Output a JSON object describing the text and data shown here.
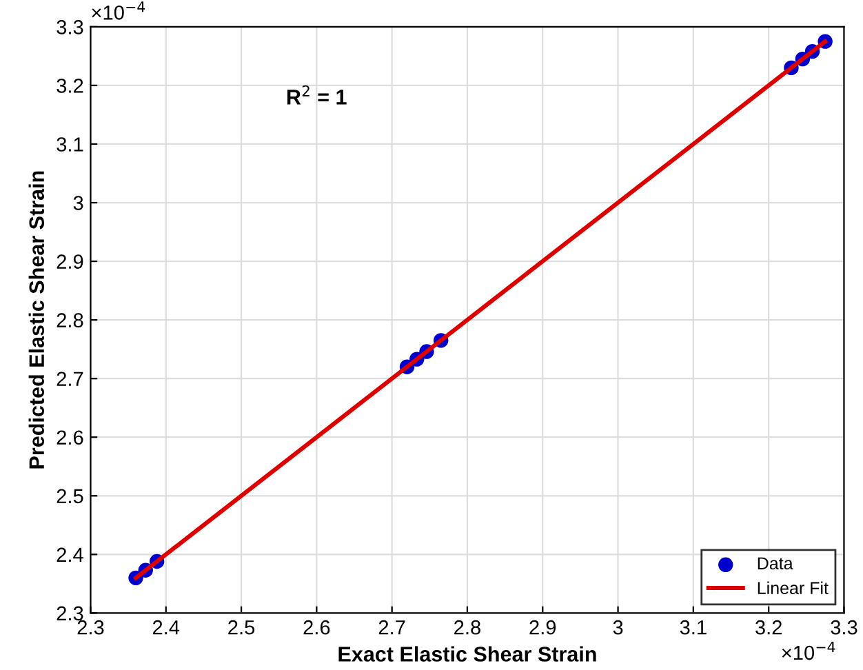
{
  "chart_data": {
    "type": "scatter",
    "xlabel": "Exact Elastic Shear Strain",
    "ylabel": "Predicted Elastic Shear Strain",
    "annotations": [
      "R$^{2}$ = 1",
      "×10$^{−4}$",
      "×10$^{−4}$"
    ],
    "series": [
      {
        "name": "Data",
        "color": "#0000cc",
        "marker": "circle",
        "x": [
          2.36,
          2.373,
          2.388,
          2.72,
          2.733,
          2.746,
          2.765,
          3.23,
          3.245,
          3.258,
          3.275
        ],
        "values": [
          2.36,
          2.373,
          2.388,
          2.72,
          2.733,
          2.746,
          2.765,
          3.23,
          3.245,
          3.258,
          3.275
        ]
      },
      {
        "name": "Linear Fit",
        "type": "line",
        "color": "#dd0000",
        "marker": "none",
        "line_style": "solid",
        "x": [
          2.36,
          3.275
        ],
        "values": [
          2.36,
          3.275
        ]
      }
    ],
    "xlim": [
      2.3,
      3.3
    ],
    "ylim": [
      2.3,
      3.3
    ],
    "xticks": [
      2.3,
      2.4,
      2.5,
      2.6,
      2.7,
      2.8,
      2.9,
      3,
      3.1,
      3.2,
      3.3
    ],
    "yticks": [
      2.3,
      2.4,
      2.5,
      2.6,
      2.7,
      2.8,
      2.9,
      3,
      3.1,
      3.2,
      3.3
    ],
    "grid": true,
    "legend": "bottom right"
  }
}
